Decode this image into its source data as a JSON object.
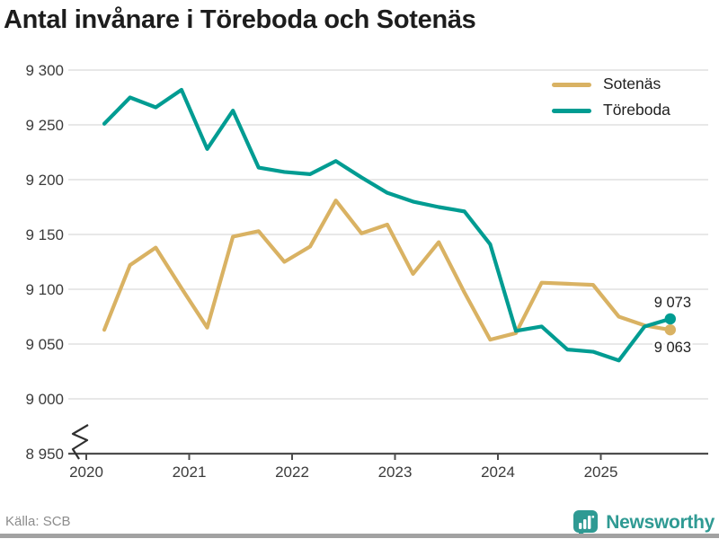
{
  "title": "Antal invånare i Töreboda och Sotenäs",
  "footer": {
    "source": "Källa: SCB",
    "brand": "Newsworthy"
  },
  "colors": {
    "sotenas": "#d9b263",
    "toreboda": "#009c92",
    "grid": "#e4e4e4",
    "axis": "#4d4d4d",
    "tick_text": "#3b3b3b",
    "title_text": "#1d1d1d",
    "brand_teal": "#2f9a93"
  },
  "chart_data": {
    "type": "line",
    "title": "Antal invånare i Töreboda och Sotenäs",
    "x": [
      "2020 Q1",
      "2020 Q2",
      "2020 Q3",
      "2020 Q4",
      "2021 Q1",
      "2021 Q2",
      "2021 Q3",
      "2021 Q4",
      "2022 Q1",
      "2022 Q2",
      "2022 Q3",
      "2022 Q4",
      "2023 Q1",
      "2023 Q2",
      "2023 Q3",
      "2023 Q4",
      "2024 Q1",
      "2024 Q2",
      "2024 Q3",
      "2024 Q4",
      "2025 Q1",
      "2025 Q2",
      "2025 Q3"
    ],
    "series": [
      {
        "name": "Sotenäs",
        "color": "#d9b263",
        "values": [
          9063,
          9122,
          9138,
          9101,
          9065,
          9148,
          9153,
          9125,
          9139,
          9181,
          9151,
          9159,
          9114,
          9143,
          9097,
          9054,
          9060,
          9106,
          9105,
          9104,
          9075,
          9067,
          9063
        ],
        "end_label": "9 063",
        "end_label_dy": 25
      },
      {
        "name": "Töreboda",
        "color": "#009c92",
        "values": [
          9251,
          9275,
          9266,
          9282,
          9228,
          9263,
          9211,
          9207,
          9205,
          9217,
          9202,
          9188,
          9180,
          9175,
          9171,
          9141,
          9062,
          9066,
          9045,
          9043,
          9035,
          9066,
          9073
        ],
        "end_label": "9 073",
        "end_label_dy": -13
      }
    ],
    "xticks": [
      "2020",
      "2021",
      "2022",
      "2023",
      "2024",
      "2025"
    ],
    "yticks": [
      8950,
      9000,
      9050,
      9100,
      9150,
      9200,
      9250,
      9300
    ],
    "ytick_labels": [
      "8 950",
      "9 000",
      "9 050",
      "9 100",
      "9 150",
      "9 200",
      "9 250",
      "9 300"
    ],
    "ylim": [
      8950,
      9300
    ],
    "grid": true,
    "yaxis_break": true,
    "legend_position": "top-right"
  }
}
